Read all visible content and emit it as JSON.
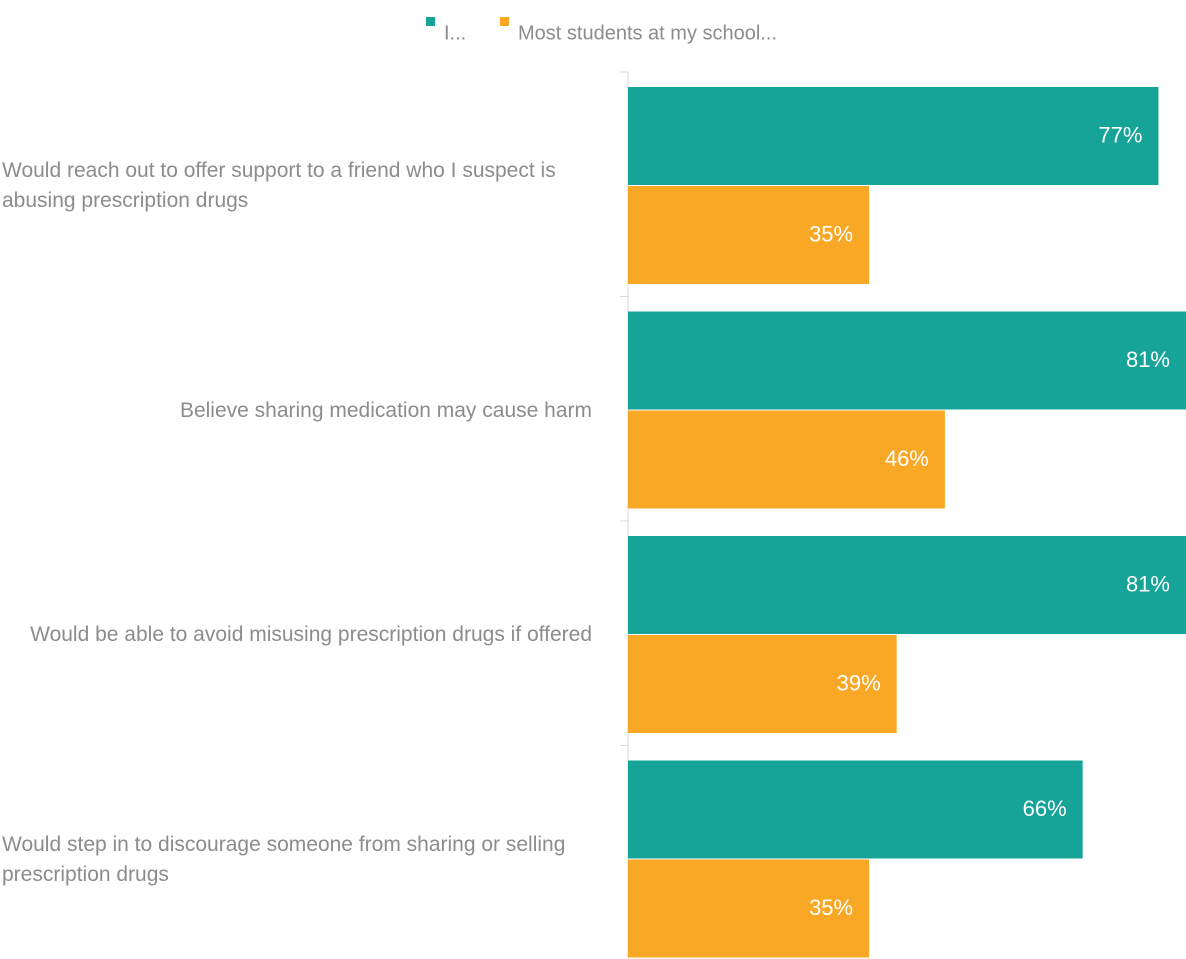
{
  "chart_data": {
    "type": "hbar",
    "categories": [
      "Would reach out to offer support to a friend who I suspect is abusing prescription drugs",
      "Believe sharing medication may cause harm",
      "Would be able to avoid misusing prescription drugs if offered",
      "Would step in to discourage someone from sharing or selling prescription drugs"
    ],
    "series": [
      {
        "name": "I...",
        "color": "#16a398",
        "values": [
          77,
          81,
          81,
          66
        ],
        "value_labels": [
          "77%",
          "81%",
          "81%",
          "66%"
        ]
      },
      {
        "name": "Most students at my school...",
        "color": "#f9a825",
        "values": [
          35,
          46,
          39,
          35
        ],
        "value_labels": [
          "35%",
          "46%",
          "39%",
          "35%"
        ]
      }
    ],
    "xlim": [
      0,
      81
    ],
    "legend": "top"
  }
}
